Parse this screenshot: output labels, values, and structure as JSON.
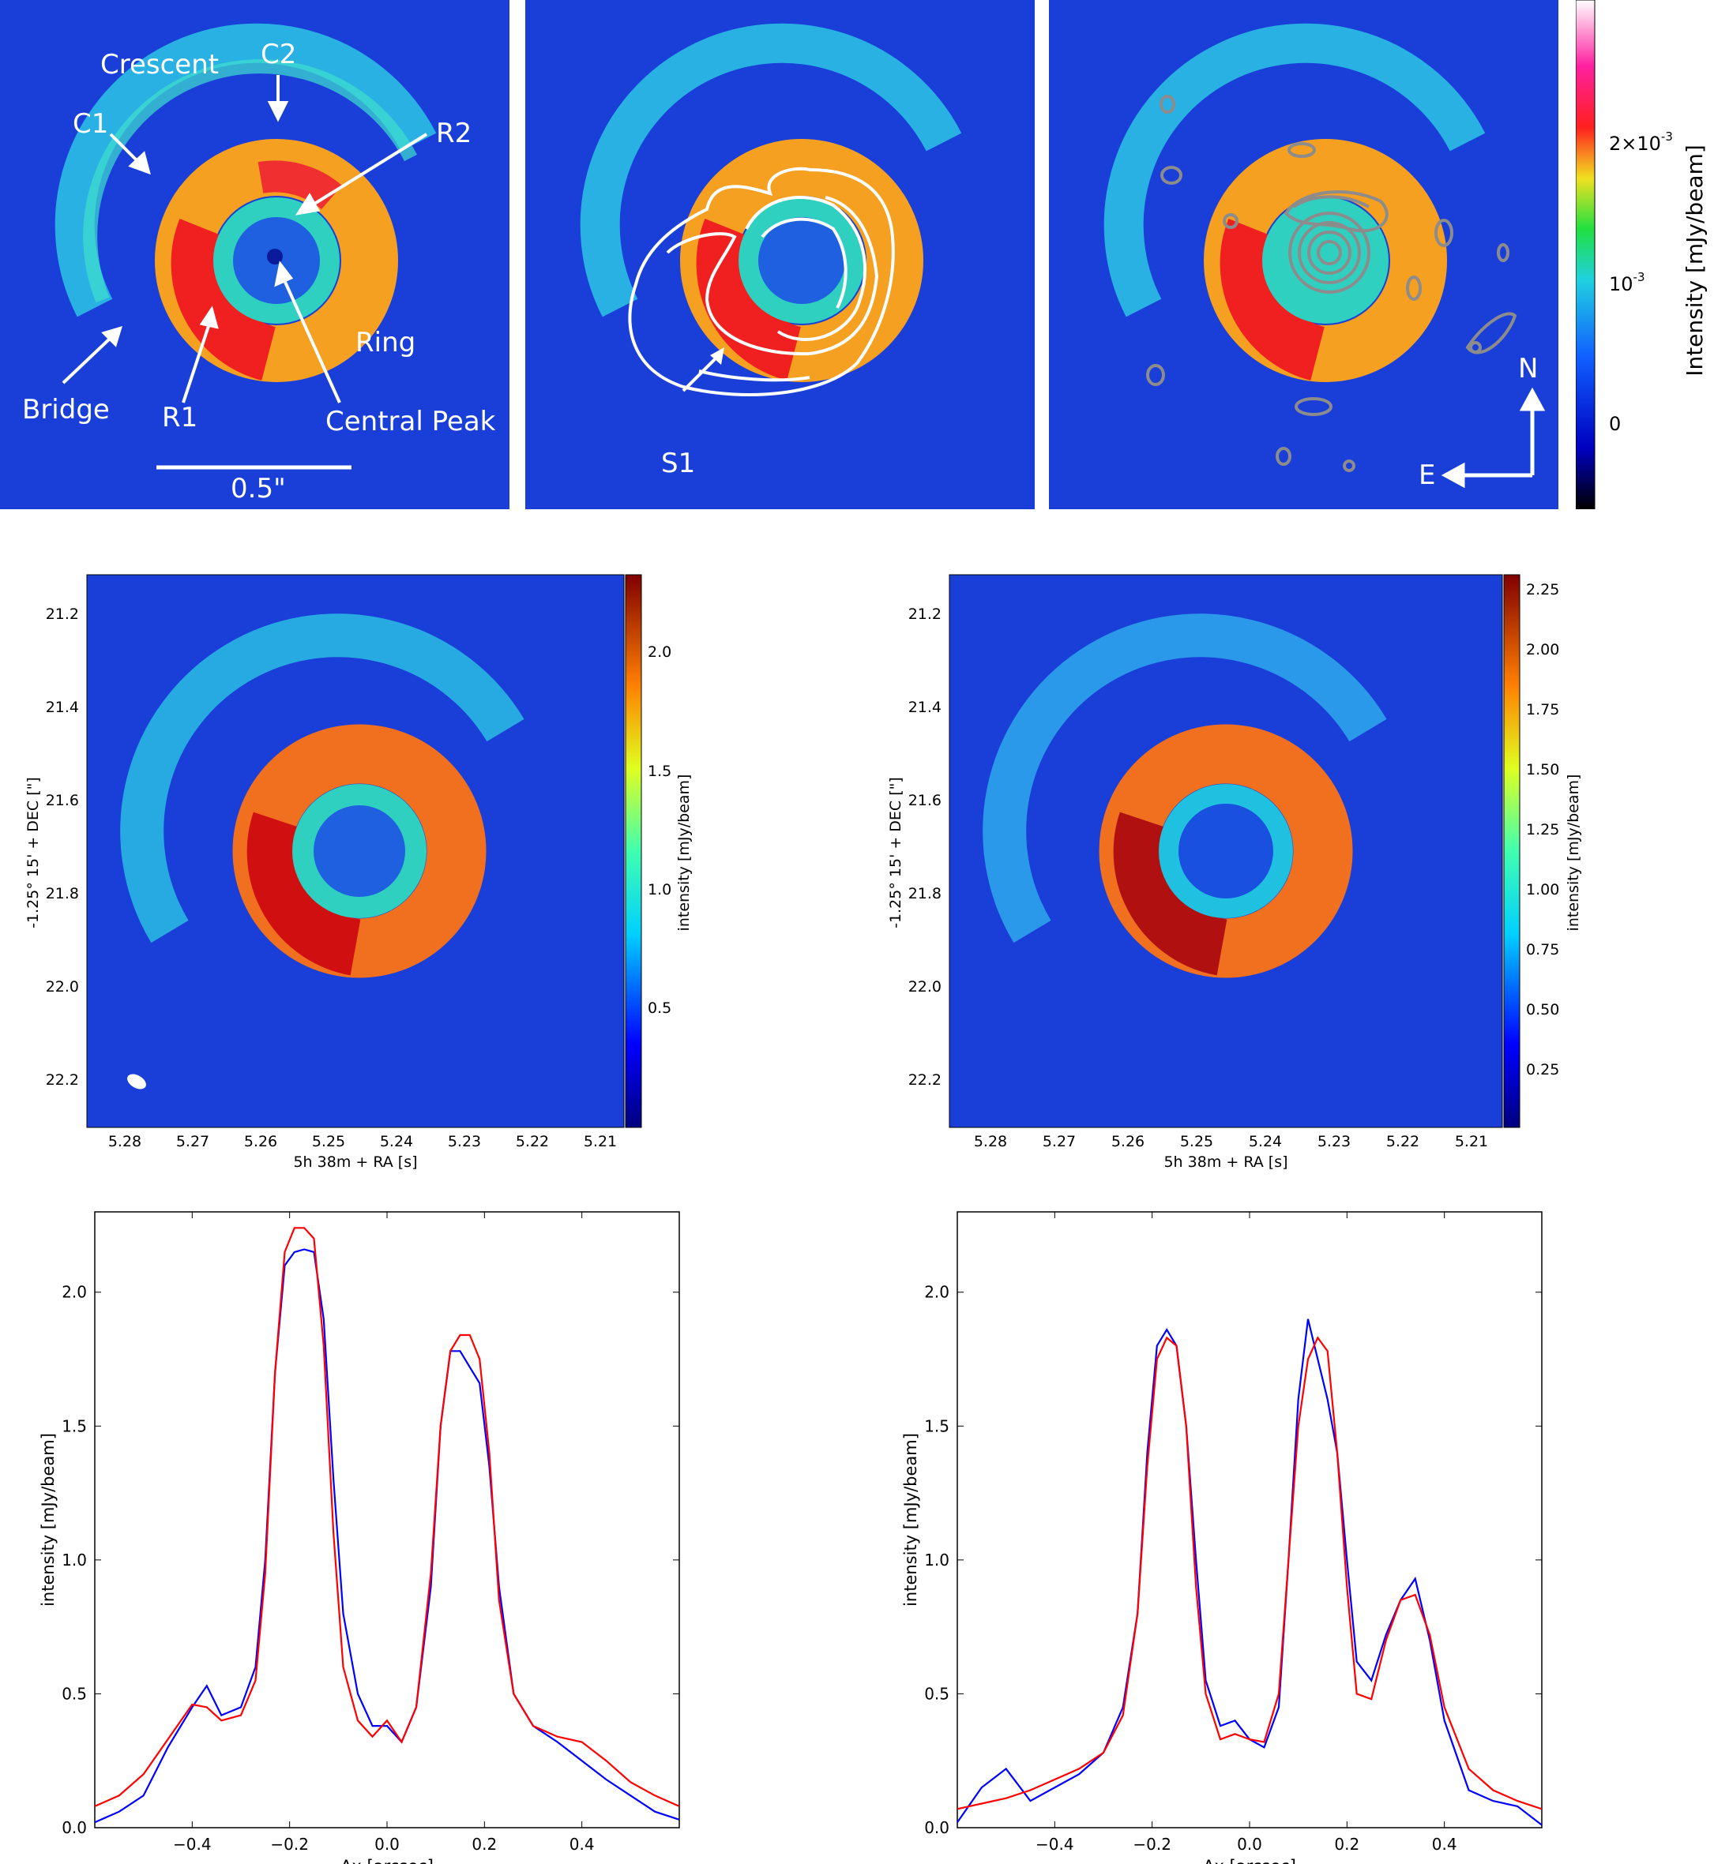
{
  "top_row": {
    "annotations": {
      "crescent": "Crescent",
      "c1": "C1",
      "c2": "C2",
      "r1": "R1",
      "r2": "R2",
      "ring": "Ring",
      "bridge": "Bridge",
      "central_peak": "Central Peak",
      "scale_bar": "0.5\"",
      "s1": "S1",
      "north": "N",
      "east": "E"
    },
    "colorbar": {
      "label": "Intensity [mJy/beam]",
      "ticks": [
        {
          "value": "2×10",
          "exp": "-3"
        },
        {
          "value": "10",
          "exp": "-3"
        },
        {
          "value": "0",
          "exp": ""
        }
      ]
    }
  },
  "middle_row": {
    "ylabel": "-1.25° 15' + DEC [\"]",
    "xlabel": "5h 38m + RA [s]",
    "yticks": [
      "21.2",
      "21.4",
      "21.6",
      "21.8",
      "22.0",
      "22.2"
    ],
    "xticks": [
      "5.28",
      "5.27",
      "5.26",
      "5.25",
      "5.24",
      "5.23",
      "5.22",
      "5.21"
    ],
    "left_colorbar": {
      "label": "intensity [mJy/beam]",
      "ticks": [
        "2.0",
        "1.5",
        "1.0",
        "0.5"
      ]
    },
    "right_colorbar": {
      "label": "intensity [mJy/beam]",
      "ticks": [
        "2.25",
        "2.00",
        "1.75",
        "1.50",
        "1.25",
        "1.00",
        "0.75",
        "0.50",
        "0.25"
      ]
    }
  },
  "colors": {
    "observed": "#0000ff",
    "model": "#ff0000",
    "background": "#1a3fd8",
    "contour_white": "#ffffff",
    "contour_grey": "#8c8c8c"
  },
  "chart_data": [
    {
      "type": "line",
      "xlabel": "Δx [arcsec]",
      "ylabel": "intensity [mJy/beam]",
      "xlim": [
        -0.6,
        0.6
      ],
      "ylim": [
        0,
        2.3
      ],
      "xticks": [
        "−0.4",
        "−0.2",
        "0.0",
        "0.2",
        "0.4"
      ],
      "yticks": [
        "0.0",
        "0.5",
        "1.0",
        "1.5",
        "2.0"
      ],
      "x": [
        -0.6,
        -0.55,
        -0.5,
        -0.45,
        -0.4,
        -0.37,
        -0.34,
        -0.3,
        -0.27,
        -0.25,
        -0.23,
        -0.21,
        -0.19,
        -0.17,
        -0.15,
        -0.13,
        -0.11,
        -0.09,
        -0.06,
        -0.03,
        0.0,
        0.03,
        0.06,
        0.09,
        0.11,
        0.13,
        0.15,
        0.17,
        0.19,
        0.21,
        0.23,
        0.26,
        0.3,
        0.35,
        0.4,
        0.45,
        0.5,
        0.55,
        0.6
      ],
      "series": [
        {
          "values": [
            0.02,
            0.06,
            0.12,
            0.3,
            0.45,
            0.53,
            0.42,
            0.45,
            0.6,
            1.0,
            1.7,
            2.1,
            2.15,
            2.16,
            2.15,
            1.9,
            1.3,
            0.8,
            0.5,
            0.38,
            0.38,
            0.32,
            0.45,
            0.9,
            1.5,
            1.78,
            1.78,
            1.72,
            1.66,
            1.35,
            0.9,
            0.5,
            0.38,
            0.32,
            0.25,
            0.18,
            0.12,
            0.06,
            0.03
          ]
        },
        {
          "values": [
            0.08,
            0.12,
            0.2,
            0.33,
            0.46,
            0.45,
            0.4,
            0.42,
            0.55,
            0.95,
            1.7,
            2.15,
            2.24,
            2.24,
            2.2,
            1.8,
            1.1,
            0.6,
            0.4,
            0.34,
            0.4,
            0.32,
            0.45,
            0.95,
            1.5,
            1.78,
            1.84,
            1.84,
            1.75,
            1.4,
            0.85,
            0.5,
            0.38,
            0.34,
            0.32,
            0.25,
            0.17,
            0.12,
            0.08
          ]
        }
      ]
    },
    {
      "type": "line",
      "xlabel": "Δx [arcsec]",
      "ylabel": "intensity [mJy/beam]",
      "xlim": [
        -0.6,
        0.6
      ],
      "ylim": [
        0,
        2.3
      ],
      "xticks": [
        "−0.4",
        "−0.2",
        "0.0",
        "0.2",
        "0.4"
      ],
      "yticks": [
        "0.0",
        "0.5",
        "1.0",
        "1.5",
        "2.0"
      ],
      "x": [
        -0.6,
        -0.55,
        -0.5,
        -0.45,
        -0.4,
        -0.35,
        -0.3,
        -0.26,
        -0.23,
        -0.21,
        -0.19,
        -0.17,
        -0.15,
        -0.13,
        -0.11,
        -0.09,
        -0.06,
        -0.03,
        0.0,
        0.03,
        0.06,
        0.08,
        0.1,
        0.12,
        0.14,
        0.16,
        0.18,
        0.2,
        0.22,
        0.25,
        0.28,
        0.31,
        0.34,
        0.37,
        0.4,
        0.45,
        0.5,
        0.55,
        0.6
      ],
      "series": [
        {
          "values": [
            0.02,
            0.15,
            0.22,
            0.1,
            0.15,
            0.2,
            0.28,
            0.45,
            0.8,
            1.4,
            1.8,
            1.86,
            1.8,
            1.5,
            1.0,
            0.55,
            0.38,
            0.4,
            0.33,
            0.3,
            0.45,
            1.0,
            1.6,
            1.9,
            1.75,
            1.6,
            1.4,
            1.0,
            0.62,
            0.55,
            0.72,
            0.85,
            0.93,
            0.7,
            0.4,
            0.14,
            0.1,
            0.08,
            0.01
          ]
        },
        {
          "values": [
            0.07,
            0.09,
            0.11,
            0.14,
            0.18,
            0.22,
            0.28,
            0.42,
            0.8,
            1.35,
            1.75,
            1.83,
            1.8,
            1.5,
            0.9,
            0.5,
            0.33,
            0.35,
            0.33,
            0.32,
            0.5,
            1.0,
            1.5,
            1.75,
            1.83,
            1.78,
            1.4,
            0.9,
            0.5,
            0.48,
            0.7,
            0.85,
            0.87,
            0.72,
            0.45,
            0.22,
            0.14,
            0.1,
            0.07
          ]
        }
      ]
    }
  ]
}
